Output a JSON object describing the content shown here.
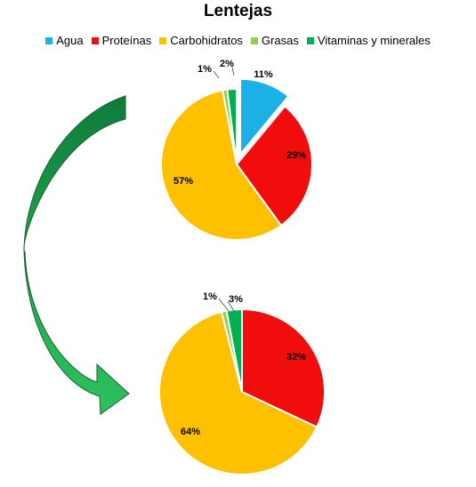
{
  "chart_data": {
    "type": "pie",
    "title": "Lentejas",
    "legend_position": "top",
    "categories": [
      "Agua",
      "Proteínas",
      "Carbohidratos",
      "Grasas",
      "Vitaminas y minerales"
    ],
    "colors": [
      "#1CB0E6",
      "#F20D0D",
      "#FFC000",
      "#92D050",
      "#00B050"
    ],
    "pies": [
      {
        "values": [
          11,
          29,
          57,
          1,
          2
        ],
        "labels": [
          "11%",
          "29%",
          "57%",
          "1%",
          "2%"
        ],
        "exploded": [
          "Agua"
        ]
      },
      {
        "values": [
          0,
          32,
          64,
          1,
          3
        ],
        "labels": [
          "",
          "32%",
          "64%",
          "1%",
          "3%"
        ],
        "exploded": []
      }
    ],
    "arrow_color": "#1E9E4A"
  }
}
